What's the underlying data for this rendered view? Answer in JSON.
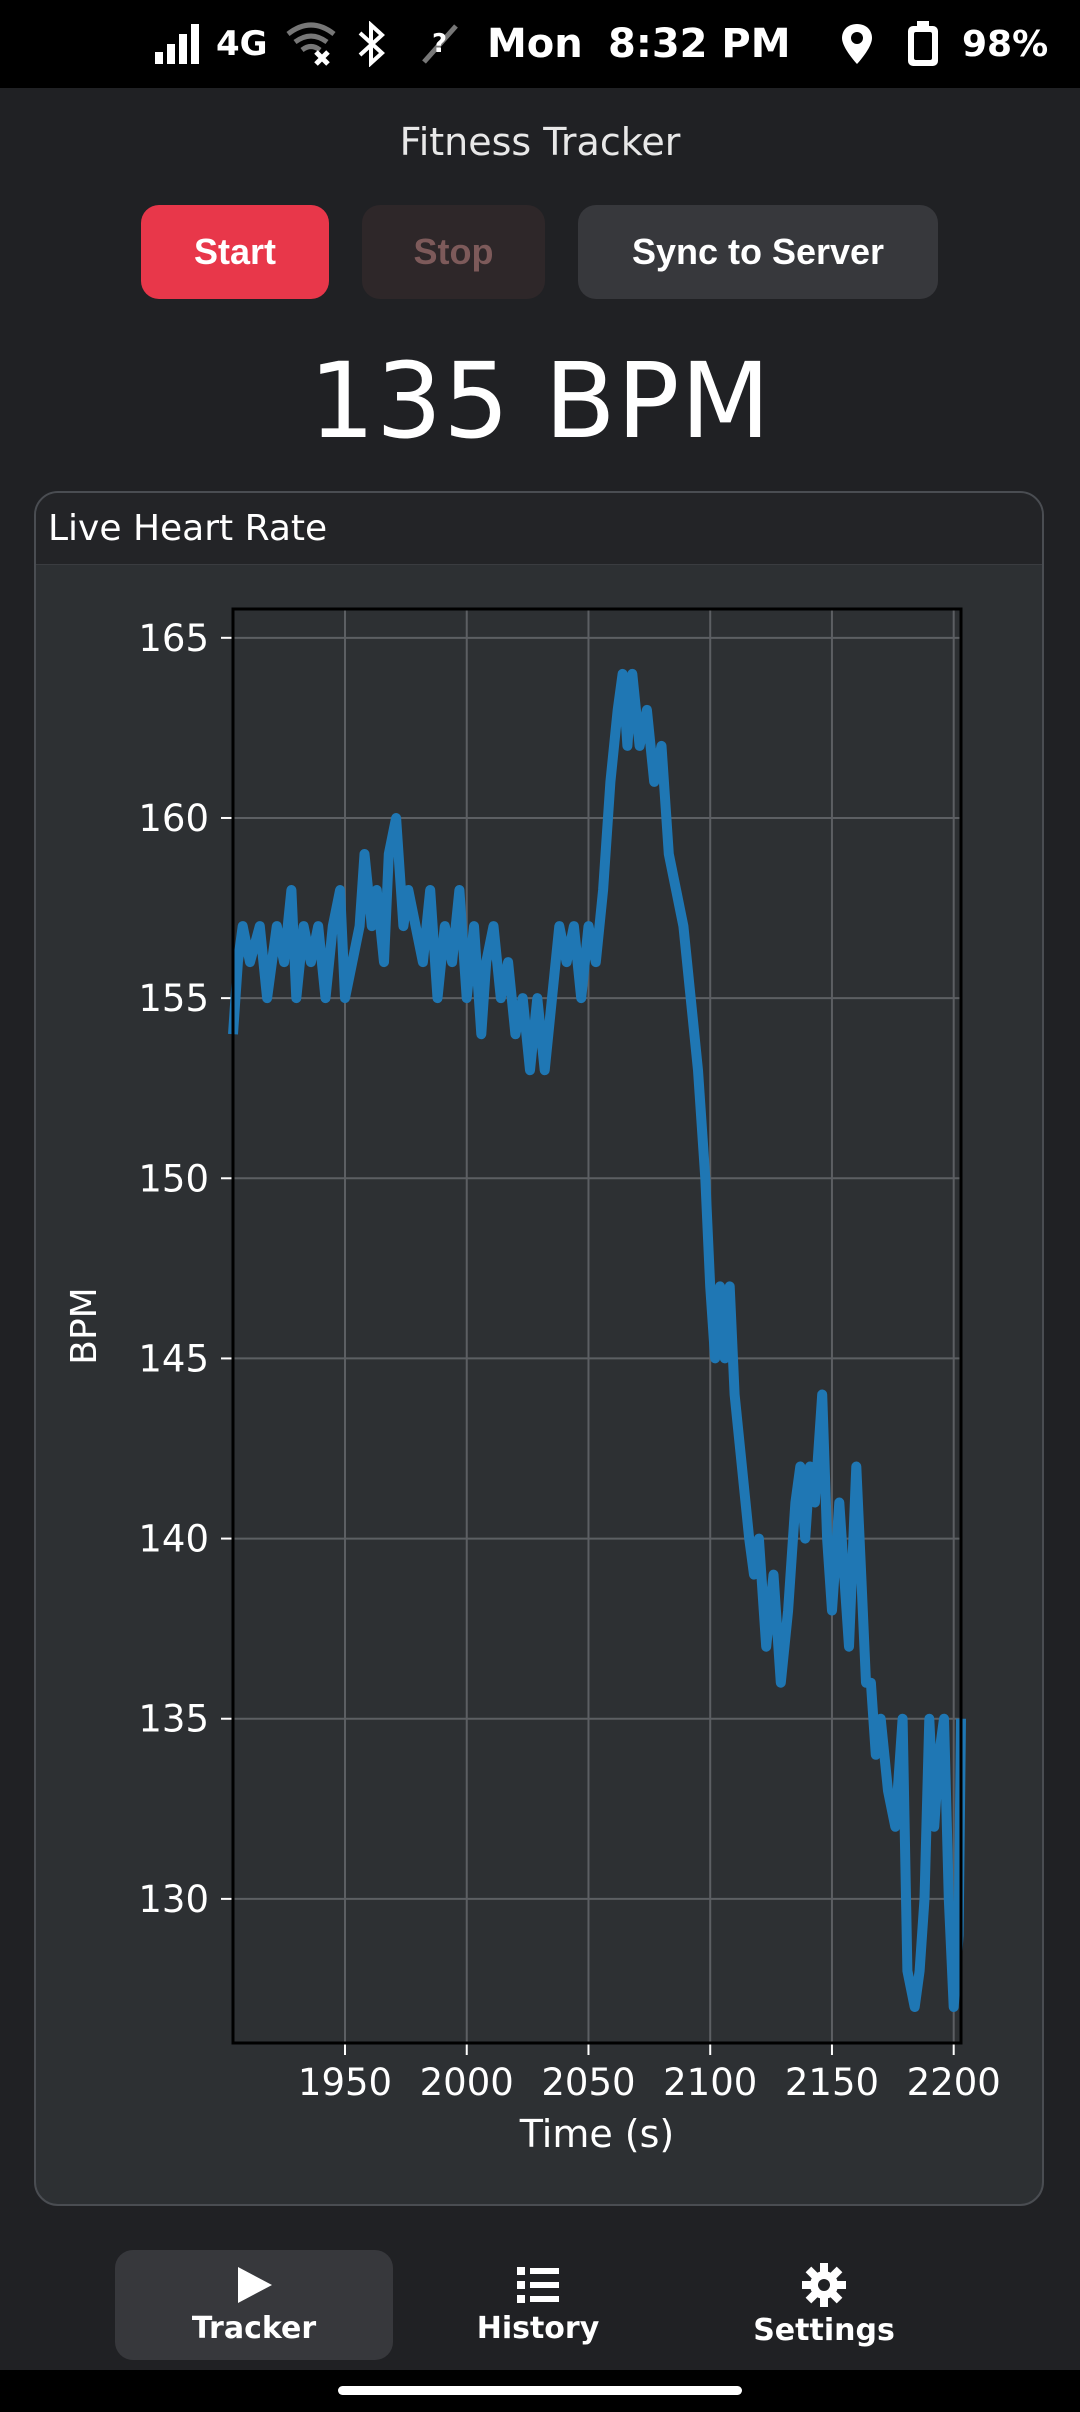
{
  "status_bar": {
    "network": "4G",
    "day": "Mon",
    "time": "8:32 PM",
    "battery": "98%"
  },
  "app": {
    "title": "Fitness Tracker",
    "start_label": "Start",
    "stop_label": "Stop",
    "sync_label": "Sync to Server",
    "current_bpm": "135 BPM"
  },
  "card": {
    "title": "Live Heart Rate"
  },
  "chart_data": {
    "type": "line",
    "title": "",
    "xlabel": "Time (s)",
    "ylabel": "BPM",
    "xlim": [
      1904,
      2203
    ],
    "ylim": [
      126,
      165.8
    ],
    "xticks": [
      "1950",
      "2000",
      "2050",
      "2100",
      "2150",
      "2200"
    ],
    "yticks": [
      "130",
      "135",
      "140",
      "145",
      "150",
      "155",
      "160",
      "165"
    ],
    "grid": true,
    "color": "#1f77b4",
    "series": [
      {
        "name": "Heart Rate",
        "x": [
          1904,
          1906,
          1908,
          1911,
          1915,
          1918,
          1922,
          1925,
          1928,
          1930,
          1933,
          1936,
          1939,
          1942,
          1945,
          1948,
          1950,
          1953,
          1956,
          1958,
          1961,
          1963,
          1966,
          1968,
          1971,
          1974,
          1976,
          1979,
          1982,
          1985,
          1988,
          1991,
          1994,
          1997,
          2000,
          2003,
          2006,
          2008,
          2011,
          2014,
          2017,
          2020,
          2023,
          2026,
          2029,
          2032,
          2035,
          2038,
          2041,
          2044,
          2047,
          2050,
          2053,
          2056,
          2059,
          2062,
          2064,
          2066,
          2068,
          2071,
          2074,
          2077,
          2080,
          2083,
          2086,
          2089,
          2092,
          2095,
          2098,
          2100,
          2102,
          2104,
          2106,
          2108,
          2110,
          2113,
          2116,
          2118,
          2120,
          2123,
          2126,
          2129,
          2132,
          2135,
          2137,
          2139,
          2141,
          2143,
          2146,
          2148,
          2150,
          2153,
          2155,
          2157,
          2160,
          2162,
          2164,
          2166,
          2168,
          2170,
          2173,
          2176,
          2179,
          2181,
          2184,
          2186,
          2188,
          2190,
          2192,
          2194,
          2196,
          2198,
          2200,
          2202,
          2203
        ],
        "y": [
          154,
          156,
          157,
          156,
          157,
          155,
          157,
          156,
          158,
          155,
          157,
          156,
          157,
          155,
          157,
          158,
          155,
          156,
          157,
          159,
          157,
          158,
          156,
          159,
          160,
          157,
          158,
          157,
          156,
          158,
          155,
          157,
          156,
          158,
          155,
          157,
          154,
          156,
          157,
          155,
          156,
          154,
          155,
          153,
          155,
          153,
          155,
          157,
          156,
          157,
          155,
          157,
          156,
          158,
          161,
          163,
          164,
          162,
          164,
          162,
          163,
          161,
          162,
          159,
          158,
          157,
          155,
          153,
          150,
          147,
          145,
          147,
          145,
          147,
          144,
          142,
          140,
          139,
          140,
          137,
          139,
          136,
          138,
          141,
          142,
          140,
          142,
          141,
          144,
          140,
          138,
          141,
          139,
          137,
          142,
          139,
          136,
          136,
          134,
          135,
          133,
          132,
          135,
          128,
          127,
          128,
          130,
          135,
          132,
          134,
          135,
          130,
          127,
          129,
          135
        ]
      }
    ]
  },
  "nav": {
    "tracker_label": "Tracker",
    "history_label": "History",
    "settings_label": "Settings"
  }
}
